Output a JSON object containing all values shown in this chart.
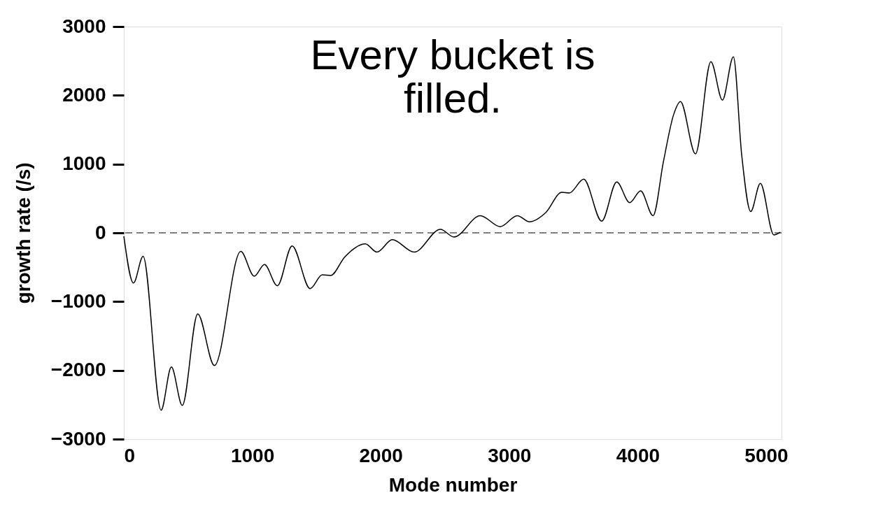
{
  "chart_data": {
    "type": "line",
    "title": "Every bucket is filled.",
    "xlabel": "Mode number",
    "ylabel": "growth rate (/s)",
    "xlim": [
      0,
      5120
    ],
    "xticks": [
      0,
      1000,
      2000,
      3000,
      4000,
      5000
    ],
    "ylim": [
      -3000,
      3000
    ],
    "yticks": [
      -3000,
      -2000,
      -1000,
      0,
      1000,
      2000,
      3000
    ],
    "grid": false,
    "marker": "none",
    "line_style": "solid",
    "ref_lines": [
      {
        "axis": "y",
        "value": 0,
        "line_style": "dashed",
        "color": "#000000"
      }
    ],
    "series": [
      {
        "color": "#000000",
        "x": [
          0,
          75,
          150,
          290,
          370,
          455,
          575,
          705,
          910,
          1015,
          1095,
          1195,
          1310,
          1450,
          1545,
          1610,
          1720,
          1880,
          1970,
          2090,
          2260,
          2465,
          2570,
          2775,
          2930,
          3063,
          3159,
          3282,
          3410,
          3468,
          3580,
          3720,
          3837,
          3938,
          4023,
          4120,
          4200,
          4280,
          4333,
          4450,
          4570,
          4660,
          4745,
          4810,
          4880,
          4955,
          5060,
          5110
        ],
        "values": [
          -50,
          -730,
          -340,
          -2580,
          -1950,
          -2510,
          -1180,
          -1930,
          -270,
          -630,
          -460,
          -770,
          -190,
          -810,
          -610,
          -620,
          -350,
          -160,
          -280,
          -100,
          -280,
          50,
          -60,
          250,
          90,
          250,
          160,
          290,
          590,
          580,
          780,
          170,
          740,
          440,
          610,
          250,
          1030,
          1720,
          1910,
          1150,
          2490,
          1930,
          2560,
          1130,
          310,
          720,
          -30,
          10
        ]
      }
    ]
  }
}
